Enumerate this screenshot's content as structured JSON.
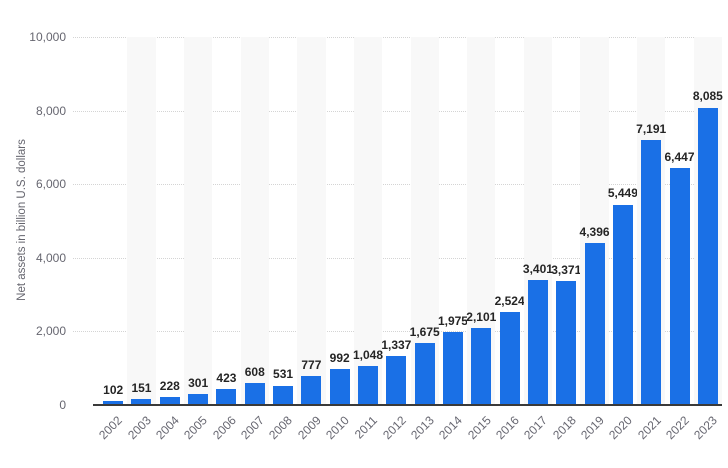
{
  "chart_data": {
    "type": "bar",
    "title": "",
    "xlabel": "",
    "ylabel": "Net assets in billion U.S. dollars",
    "ylim": [
      0,
      10000
    ],
    "ytick_interval": 2000,
    "yticks": [
      {
        "value": 0,
        "label": "0"
      },
      {
        "value": 2000,
        "label": "2,000"
      },
      {
        "value": 4000,
        "label": "4,000"
      },
      {
        "value": 6000,
        "label": "6,000"
      },
      {
        "value": 8000,
        "label": "8,000"
      },
      {
        "value": 10000,
        "label": "10,000"
      }
    ],
    "categories": [
      "2002",
      "2003",
      "2004",
      "2005",
      "2006",
      "2007",
      "2008",
      "2009",
      "2010",
      "2011",
      "2012",
      "2013",
      "2014",
      "2015",
      "2016",
      "2017",
      "2018",
      "2019",
      "2020",
      "2021",
      "2022",
      "2023"
    ],
    "values": [
      102,
      151,
      228,
      301,
      423,
      608,
      531,
      777,
      992,
      1048,
      1337,
      1675,
      1975,
      2101,
      2524,
      3401,
      3371,
      4396,
      5449,
      7191,
      6447,
      8085
    ],
    "value_labels": [
      "102",
      "151",
      "228",
      "301",
      "423",
      "608",
      "531",
      "777",
      "992",
      "1,048",
      "1,337",
      "1,675",
      "1,975",
      "2,101",
      "2,524",
      "3,401",
      "3,371",
      "4,396",
      "5,449",
      "7,191",
      "6,447",
      "8,085"
    ],
    "grid": "horizontal dotted lines, alternating vertical background stripes",
    "legend": "none",
    "colors": {
      "bar": "#1a70e6",
      "stripe": "#f8f8f8",
      "gridline": "#d4d4d4",
      "axis_line": "#3a3a3a",
      "tick_text": "#666670",
      "value_label_text": "#252525",
      "background": "#ffffff"
    }
  }
}
